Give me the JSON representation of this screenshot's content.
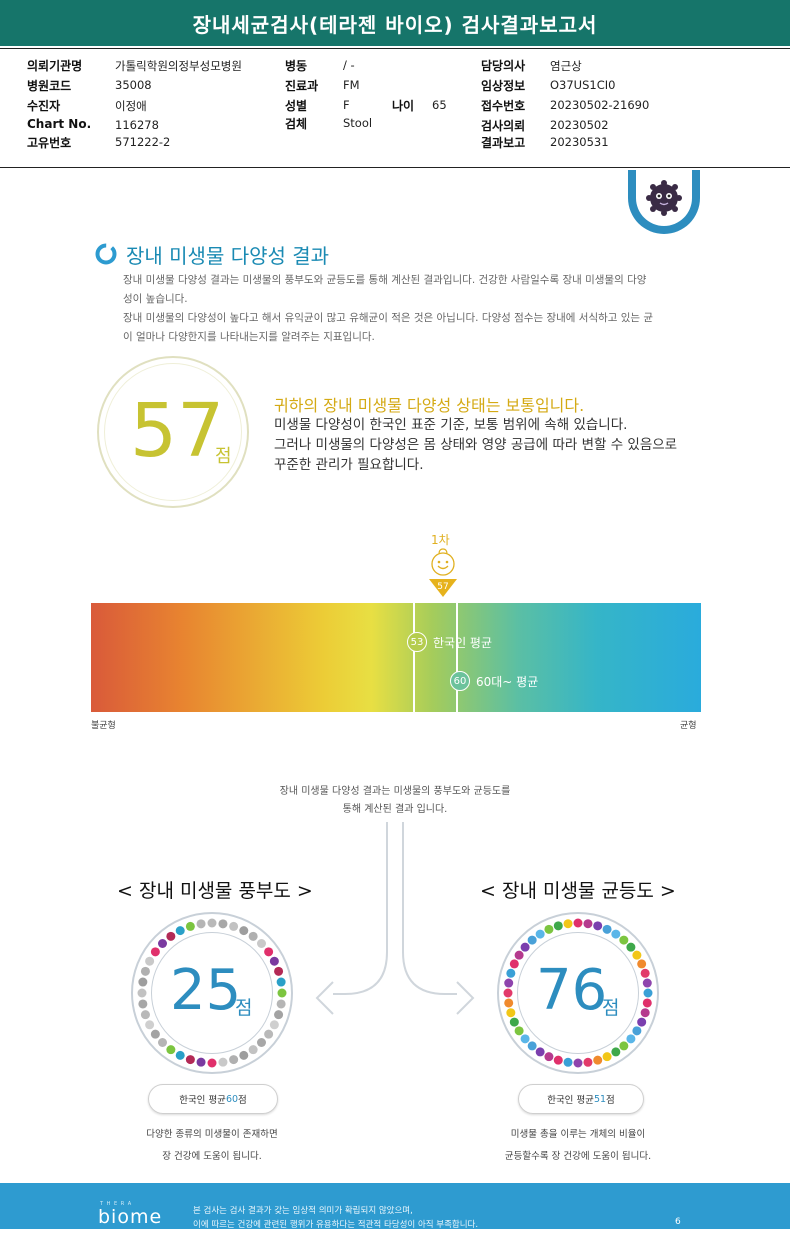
{
  "header": {
    "title": "장내세균검사(테라젠 바이오) 검사결과보고서"
  },
  "info": {
    "institution_label": "의뢰기관명",
    "institution": "가톨릭학원의정부성모병원",
    "hospital_code_label": "병원코드",
    "hospital_code": "35008",
    "patient_label": "수진자",
    "patient": "이정애",
    "chart_label": "Chart No.",
    "chart": "116278",
    "unique_label": "고유번호",
    "unique": "571222-2",
    "ward_label": "병동",
    "ward": "/ -",
    "dept_label": "진료과",
    "dept": "FM",
    "sex_label": "성별",
    "sex": "F",
    "age_label": "나이",
    "age": "65",
    "specimen_label": "검체",
    "specimen": "Stool",
    "doctor_label": "담당의사",
    "doctor": "염근상",
    "clinical_label": "임상정보",
    "clinical": "O37US1CI0",
    "receipt_label": "접수번호",
    "receipt": "20230502-21690",
    "request_label": "검사의뢰",
    "request": "20230502",
    "report_label": "결과보고",
    "report": "20230531"
  },
  "section": {
    "title": "장내 미생물 다양성 결과",
    "p1_line1": "장내 미생물 다양성 결과는 미생물의 풍부도와 균등도를 통해 계산된 결과입니다. 건강한 사람일수록 장내 미생물의 다양",
    "p1_line2": "성이 높습니다.",
    "p2_line1": "장내 미생물의 다양성이 높다고 해서 유익균이 많고 유해균이 적은 것은 아닙니다. 다양성 점수는 장내에 서식하고 있는 균",
    "p2_line2": "이 얼마나 다양한지를 나타내는지를 알려주는 지표입니다."
  },
  "score": {
    "value": "57",
    "unit": "점",
    "headline": "귀하의 장내 미생물 다양성 상태는 보통입니다.",
    "line1": "미생물 다양성이 한국인 표준 기준, 보통 범위에 속해 있습니다.",
    "line2": "그러나 미생물의 다양성은 몸 상태와 영양 공급에 따라 변할 수 있음으로",
    "line3": "꾸준한 관리가 필요합니다."
  },
  "scale": {
    "round_label": "1차",
    "marker_value": "57",
    "korean_avg_value": "53",
    "korean_avg_label": "한국인 평균",
    "sixty_avg_value": "60",
    "sixty_avg_label": "60대~ 평균",
    "left_label": "불균형",
    "right_label": "균형"
  },
  "explain": {
    "line1": "장내 미생물 다양성 결과는 미생물의 풍부도와 균등도를",
    "line2": "통해 계산된 결과 입니다."
  },
  "richness": {
    "title": "< 장내 미생물 풍부도 >",
    "value": "25",
    "unit": "점",
    "avg_prefix": "한국인 평균 ",
    "avg_value": "60",
    "avg_suffix": "점",
    "desc1": "다양한 종류의 미생물이 존재하면",
    "desc2": "장 건강에 도움이 됩니다."
  },
  "evenness": {
    "title": "< 장내 미생물 균등도 >",
    "value": "76",
    "unit": "점",
    "avg_prefix": "한국인 평균 ",
    "avg_value": "51",
    "avg_suffix": "점",
    "desc1": "미생물 총을 이루는 개체의 비율이",
    "desc2": "균등할수록 장 건강에 도움이 됩니다."
  },
  "footer": {
    "brand_small": "T H E R A",
    "brand": "biome",
    "note1": "본 검사는 검사 결과가 갖는 임상적 의미가 확립되지 않았으며,",
    "note2": "이에 따르는 건강에 관련된 행위가 유용하다는 적관적 타당성이 아직 부족합니다.",
    "page": "6"
  },
  "colors": {
    "header": "#16756a",
    "accent_blue": "#2d8dbf",
    "score_yellow": "#c7c332",
    "footer": "#2e9bd0"
  }
}
